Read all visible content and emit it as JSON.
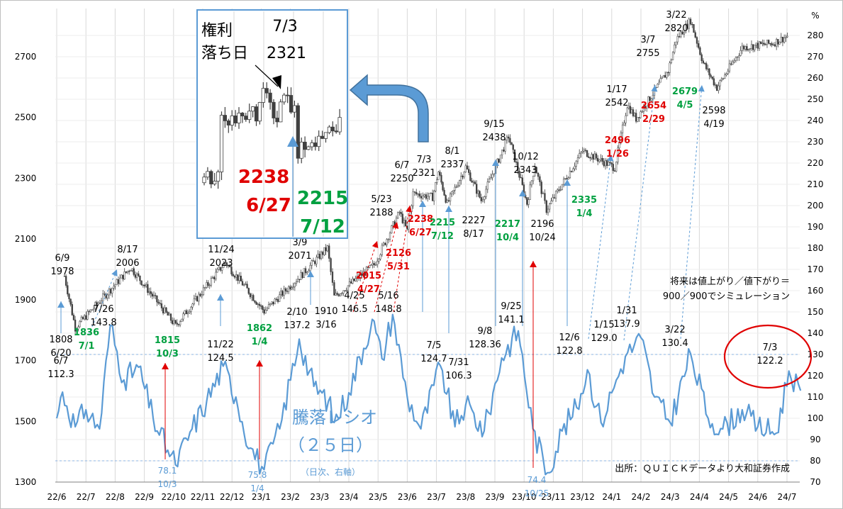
{
  "chart_data": [
    {
      "type": "candlestick",
      "x_ticks": [
        "22/6",
        "22/7",
        "22/8",
        "22/9",
        "22/10",
        "22/11",
        "22/12",
        "23/1",
        "23/2",
        "23/3",
        "23/4",
        "23/5",
        "23/6",
        "23/7",
        "23/8",
        "23/9",
        "23/10",
        "23/11",
        "23/12",
        "24/1",
        "24/2",
        "24/3",
        "24/4",
        "24/5",
        "24/6",
        "24/7"
      ],
      "y_ticks": [
        1300,
        1500,
        1700,
        1900,
        2100,
        2300,
        2500,
        2700
      ],
      "ylim": [
        1300,
        2880
      ],
      "points": [
        {
          "date": "22/6/9",
          "value": 1978
        },
        {
          "date": "22/6/20",
          "value": 1808
        },
        {
          "date": "22/8/17",
          "value": 2006
        },
        {
          "date": "22/10/3",
          "value": 1815
        },
        {
          "date": "22/11/24",
          "value": 2023
        },
        {
          "date": "22/12",
          "value": 1940
        },
        {
          "date": "23/1/4",
          "value": 1862
        },
        {
          "date": "23/2",
          "value": 1990
        },
        {
          "date": "23/3/9",
          "value": 2071
        },
        {
          "date": "23/3/16",
          "value": 1910
        },
        {
          "date": "23/4/27",
          "value": 2015
        },
        {
          "date": "23/5/23",
          "value": 2188
        },
        {
          "date": "23/5/31",
          "value": 2126
        },
        {
          "date": "23/6/7",
          "value": 2250
        },
        {
          "date": "23/6/27",
          "value": 2238
        },
        {
          "date": "23/7/3",
          "value": 2321
        },
        {
          "date": "23/7/12",
          "value": 2215
        },
        {
          "date": "23/8/1",
          "value": 2337
        },
        {
          "date": "23/8/17",
          "value": 2227
        },
        {
          "date": "23/9/15",
          "value": 2438
        },
        {
          "date": "23/10/4",
          "value": 2217
        },
        {
          "date": "23/10/12",
          "value": 2343
        },
        {
          "date": "23/10/24",
          "value": 2196
        },
        {
          "date": "23/12/1",
          "value": 2390
        },
        {
          "date": "24/1/4",
          "value": 2335
        },
        {
          "date": "24/1/17",
          "value": 2542
        },
        {
          "date": "24/1/26",
          "value": 2496
        },
        {
          "date": "24/2/29",
          "value": 2654
        },
        {
          "date": "24/3/7",
          "value": 2755
        },
        {
          "date": "24/3/22",
          "value": 2820
        },
        {
          "date": "24/4/5",
          "value": 2679
        },
        {
          "date": "24/4/19",
          "value": 2598
        },
        {
          "date": "24/5/15",
          "value": 2730
        },
        {
          "date": "24/6/17",
          "value": 2745
        },
        {
          "date": "24/7/3",
          "value": 2770
        }
      ]
    },
    {
      "type": "line",
      "name": "騰落レシオ（２５日）",
      "right_axis_ticks": [
        70,
        80,
        90,
        100,
        110,
        120,
        130,
        140,
        150,
        160,
        170,
        180,
        190,
        200,
        210,
        220,
        230,
        240,
        250,
        260,
        270,
        280
      ],
      "right_axis_unit": "%",
      "ylim": [
        70,
        280
      ],
      "reference_lines": [
        130,
        80
      ],
      "points": [
        {
          "date": "22/6/1",
          "value": 100
        },
        {
          "date": "22/6/7",
          "value": 112.3
        },
        {
          "date": "22/6/20",
          "value": 96
        },
        {
          "date": "22/7/1",
          "value": 104
        },
        {
          "date": "22/7/15",
          "value": 95
        },
        {
          "date": "22/7/26",
          "value": 143.8
        },
        {
          "date": "22/8/10",
          "value": 118
        },
        {
          "date": "22/8/25",
          "value": 124
        },
        {
          "date": "22/9/10",
          "value": 100
        },
        {
          "date": "22/9/25",
          "value": 85
        },
        {
          "date": "22/10/3",
          "value": 78.1
        },
        {
          "date": "22/10/20",
          "value": 95
        },
        {
          "date": "22/11/5",
          "value": 108
        },
        {
          "date": "22/11/22",
          "value": 124.5
        },
        {
          "date": "22/12/5",
          "value": 110
        },
        {
          "date": "22/12/20",
          "value": 86
        },
        {
          "date": "23/1/4",
          "value": 75.8
        },
        {
          "date": "23/1/20",
          "value": 95
        },
        {
          "date": "23/2/10",
          "value": 137.2
        },
        {
          "date": "23/2/25",
          "value": 115
        },
        {
          "date": "23/3/10",
          "value": 108
        },
        {
          "date": "23/3/16",
          "value": 98
        },
        {
          "date": "23/3/31",
          "value": 112
        },
        {
          "date": "23/4/25",
          "value": 146.5
        },
        {
          "date": "23/5/5",
          "value": 128
        },
        {
          "date": "23/5/16",
          "value": 148.8
        },
        {
          "date": "23/6/1",
          "value": 110
        },
        {
          "date": "23/6/15",
          "value": 95
        },
        {
          "date": "23/7/5",
          "value": 124.7
        },
        {
          "date": "23/7/20",
          "value": 96
        },
        {
          "date": "23/7/31",
          "value": 106.3
        },
        {
          "date": "23/8/20",
          "value": 94
        },
        {
          "date": "23/9/8",
          "value": 128.36
        },
        {
          "date": "23/9/25",
          "value": 141.1
        },
        {
          "date": "23/10/10",
          "value": 95
        },
        {
          "date": "23/10/25",
          "value": 74.4
        },
        {
          "date": "23/11/10",
          "value": 94
        },
        {
          "date": "23/11/25",
          "value": 105
        },
        {
          "date": "23/12/6",
          "value": 122.8
        },
        {
          "date": "23/12/20",
          "value": 98
        },
        {
          "date": "24/1/1",
          "value": 112
        },
        {
          "date": "24/1/15",
          "value": 129
        },
        {
          "date": "24/1/31",
          "value": 137.9
        },
        {
          "date": "24/2/15",
          "value": 110
        },
        {
          "date": "24/3/1",
          "value": 98
        },
        {
          "date": "24/3/22",
          "value": 130.4
        },
        {
          "date": "24/4/10",
          "value": 100
        },
        {
          "date": "24/4/25",
          "value": 95
        },
        {
          "date": "24/5/15",
          "value": 104
        },
        {
          "date": "24/6/1",
          "value": 96
        },
        {
          "date": "24/6/20",
          "value": 93
        },
        {
          "date": "24/7/3",
          "value": 122.2
        },
        {
          "date": "24/7/15",
          "value": 113
        }
      ]
    }
  ],
  "annotations": {
    "nikkei": [
      {
        "id": "a1",
        "lines": [
          "6/9",
          "1978"
        ]
      },
      {
        "id": "a2",
        "lines": [
          "1808",
          "6/20"
        ]
      },
      {
        "id": "a3",
        "lines": [
          "8/17",
          "2006"
        ]
      },
      {
        "id": "a4",
        "lines": [
          "11/24",
          "2023"
        ]
      },
      {
        "id": "a5",
        "lines": [
          "3/9",
          "2071"
        ]
      },
      {
        "id": "a6",
        "lines": [
          "1910",
          "3/16"
        ]
      },
      {
        "id": "a7",
        "lines": [
          "5/23",
          "2188"
        ]
      },
      {
        "id": "a8",
        "lines": [
          "6/7",
          "2250"
        ]
      },
      {
        "id": "a9",
        "lines": [
          "7/3",
          "2321"
        ]
      },
      {
        "id": "a10",
        "lines": [
          "8/1",
          "2337"
        ]
      },
      {
        "id": "a11",
        "lines": [
          "2227",
          "8/17"
        ]
      },
      {
        "id": "a12",
        "lines": [
          "9/15",
          "2438"
        ]
      },
      {
        "id": "a13",
        "lines": [
          "10/12",
          "2343"
        ]
      },
      {
        "id": "a14",
        "lines": [
          "2196",
          "10/24"
        ]
      },
      {
        "id": "a15",
        "lines": [
          "1/17",
          "2542"
        ]
      },
      {
        "id": "a16",
        "lines": [
          "3/7",
          "2755"
        ]
      },
      {
        "id": "a17",
        "lines": [
          "3/22",
          "2820"
        ]
      },
      {
        "id": "a18",
        "lines": [
          "2598",
          "4/19"
        ]
      }
    ],
    "red": [
      {
        "id": "r1",
        "lines": [
          "2015",
          "4/27"
        ]
      },
      {
        "id": "r2",
        "lines": [
          "2126",
          "5/31"
        ]
      },
      {
        "id": "r3",
        "lines": [
          "2238",
          "6/27"
        ]
      },
      {
        "id": "r4",
        "lines": [
          "2496",
          "1/26"
        ]
      },
      {
        "id": "r5",
        "lines": [
          "2654",
          "2/29"
        ]
      }
    ],
    "green": [
      {
        "id": "g1",
        "lines": [
          "1836",
          "7/1"
        ]
      },
      {
        "id": "g2",
        "lines": [
          "1815",
          "10/3"
        ]
      },
      {
        "id": "g3",
        "lines": [
          "1862",
          "1/4"
        ]
      },
      {
        "id": "g4",
        "lines": [
          "2215",
          "7/12"
        ]
      },
      {
        "id": "g5",
        "lines": [
          "2217",
          "10/4"
        ]
      },
      {
        "id": "g6",
        "lines": [
          "2335",
          "1/4"
        ]
      },
      {
        "id": "g7",
        "lines": [
          "2679",
          "4/5"
        ]
      }
    ],
    "ratio": [
      {
        "id": "t1",
        "lines": [
          "6/7",
          "112.3"
        ]
      },
      {
        "id": "t2",
        "lines": [
          "7/26",
          "143.8"
        ]
      },
      {
        "id": "t3",
        "lines": [
          "11/22",
          "124.5"
        ]
      },
      {
        "id": "t4",
        "lines": [
          "2/10",
          "137.2"
        ]
      },
      {
        "id": "t5",
        "lines": [
          "4/25",
          "146.5"
        ]
      },
      {
        "id": "t6",
        "lines": [
          "5/16",
          "148.8"
        ]
      },
      {
        "id": "t7",
        "lines": [
          "7/5",
          "124.7"
        ]
      },
      {
        "id": "t8",
        "lines": [
          "7/31",
          "106.3"
        ]
      },
      {
        "id": "t9",
        "lines": [
          "9/8",
          "128.36"
        ]
      },
      {
        "id": "t10",
        "lines": [
          "9/25",
          "141.1"
        ]
      },
      {
        "id": "t11",
        "lines": [
          "12/6",
          "122.8"
        ]
      },
      {
        "id": "t12",
        "lines": [
          "1/15",
          "129.0"
        ]
      },
      {
        "id": "t13",
        "lines": [
          "1/31",
          "137.9"
        ]
      },
      {
        "id": "t14",
        "lines": [
          "3/22",
          "130.4"
        ]
      },
      {
        "id": "t15",
        "lines": [
          "7/3",
          "122.2"
        ]
      }
    ],
    "ratio_low": [
      {
        "id": "l1",
        "lines": [
          "78.1",
          "10/3"
        ]
      },
      {
        "id": "l2",
        "lines": [
          "75.8",
          "1/4"
        ]
      },
      {
        "id": "l3",
        "lines": [
          "74.4",
          "10/25"
        ]
      }
    ],
    "ratio_title": [
      "騰落レシオ",
      "（２５日）"
    ],
    "ratio_note": "（日次、右軸）",
    "sim_note": [
      "将来は値上がり／値下がり＝",
      "900／900でシミュレーション"
    ],
    "source": "出所：ＱＵＩＣＫデータより大和証券作成",
    "inset": {
      "title": [
        "権利",
        "落ち日"
      ],
      "date": "7/3",
      "value": "2321",
      "red_value": "2238",
      "red_date": "6/27",
      "green_value": "2215",
      "green_date": "7/12"
    }
  },
  "colors": {
    "candle": "#404040",
    "ratio_line": "#5b9bd5",
    "red": "#e00000",
    "green": "#00a040",
    "grid": "#d9d9d9",
    "circle": "#e00000"
  }
}
